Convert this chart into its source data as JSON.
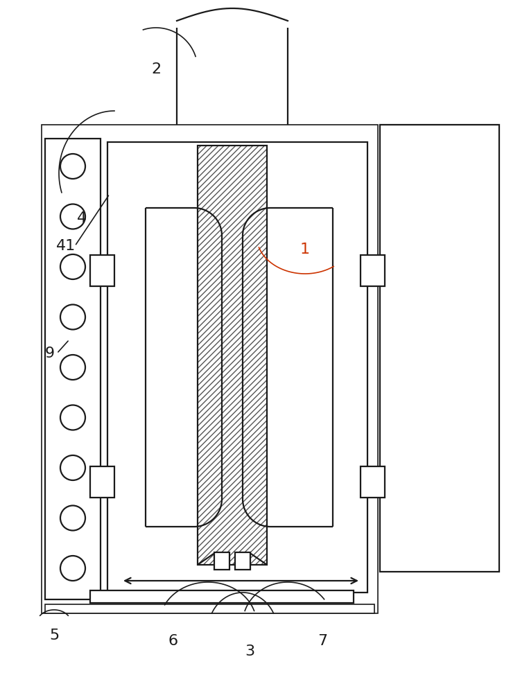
{
  "bg_color": "#ffffff",
  "line_color": "#1a1a1a",
  "hatch_color": "#555555",
  "red_color": "#cc3300",
  "figsize": [
    7.63,
    10.0
  ],
  "dpi": 100
}
